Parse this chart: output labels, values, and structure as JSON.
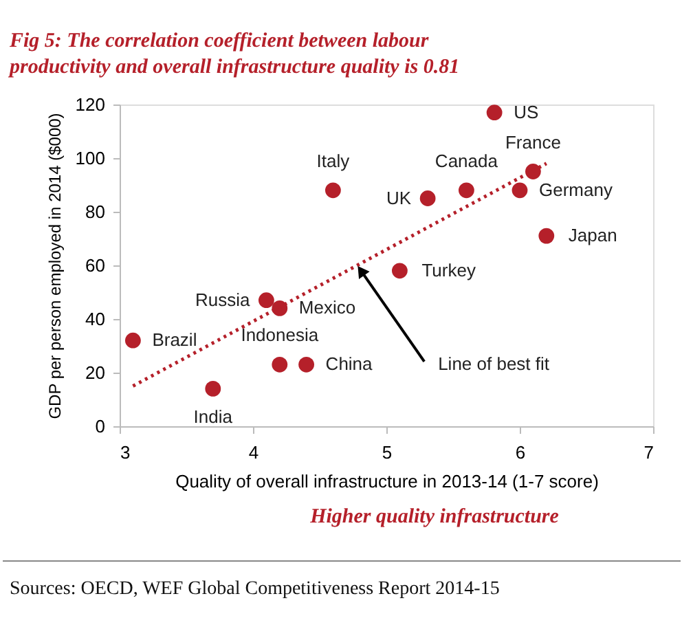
{
  "chart_data": {
    "type": "scatter",
    "title": "Fig 5: The correlation coefficient between labour productivity and overall infrastructure quality is 0.81",
    "xlabel": "Quality of overall infrastructure in 2013-14 (1-7 score)",
    "ylabel": "GDP per person employed in 2014 ($000)",
    "series": [
      {
        "color": "#b5202a",
        "marker": "circle",
        "x": [
          5.81,
          6.1,
          4.6,
          5.6,
          5.31,
          6.0,
          6.2,
          5.1,
          4.1,
          4.2,
          4.2,
          4.4,
          3.1,
          3.7
        ],
        "values": [
          117,
          95,
          88,
          88,
          85,
          88,
          71,
          58,
          47,
          44,
          23,
          23,
          32,
          14
        ]
      },
      {
        "type": "line",
        "color": "#b5202a",
        "line_style": "dotted",
        "x": [
          3.1,
          6.2
        ],
        "values": [
          15,
          98
        ]
      }
    ],
    "xlim": [
      3,
      7
    ],
    "xticks": [
      3,
      4,
      5,
      6,
      7
    ],
    "ylim": [
      0,
      120
    ],
    "yticks": [
      0,
      20,
      40,
      60,
      80,
      100,
      120
    ],
    "grid": false,
    "annotations": [
      {
        "text": "US",
        "x": 5.81,
        "y": 117
      },
      {
        "text": "France",
        "x": 6.1,
        "y": 95
      },
      {
        "text": "Italy",
        "x": 4.6,
        "y": 88
      },
      {
        "text": "Canada",
        "x": 5.6,
        "y": 88
      },
      {
        "text": "UK",
        "x": 5.31,
        "y": 85
      },
      {
        "text": "Germany",
        "x": 6.0,
        "y": 88
      },
      {
        "text": "Japan",
        "x": 6.2,
        "y": 71
      },
      {
        "text": "Turkey",
        "x": 5.1,
        "y": 58
      },
      {
        "text": "Russia",
        "x": 4.1,
        "y": 47
      },
      {
        "text": "Mexico",
        "x": 4.2,
        "y": 44
      },
      {
        "text": "Indonesia",
        "x": 4.2,
        "y": 23
      },
      {
        "text": "China",
        "x": 4.4,
        "y": 23
      },
      {
        "text": "Brazil",
        "x": 3.1,
        "y": 32
      },
      {
        "text": "India",
        "x": 3.7,
        "y": 14
      },
      {
        "text": "Line of best fit",
        "x": 4.81,
        "y": 58
      },
      "Higher quality infrastructure",
      "Sources: OECD, WEF Global Competitiveness Report 2014-15"
    ]
  }
}
